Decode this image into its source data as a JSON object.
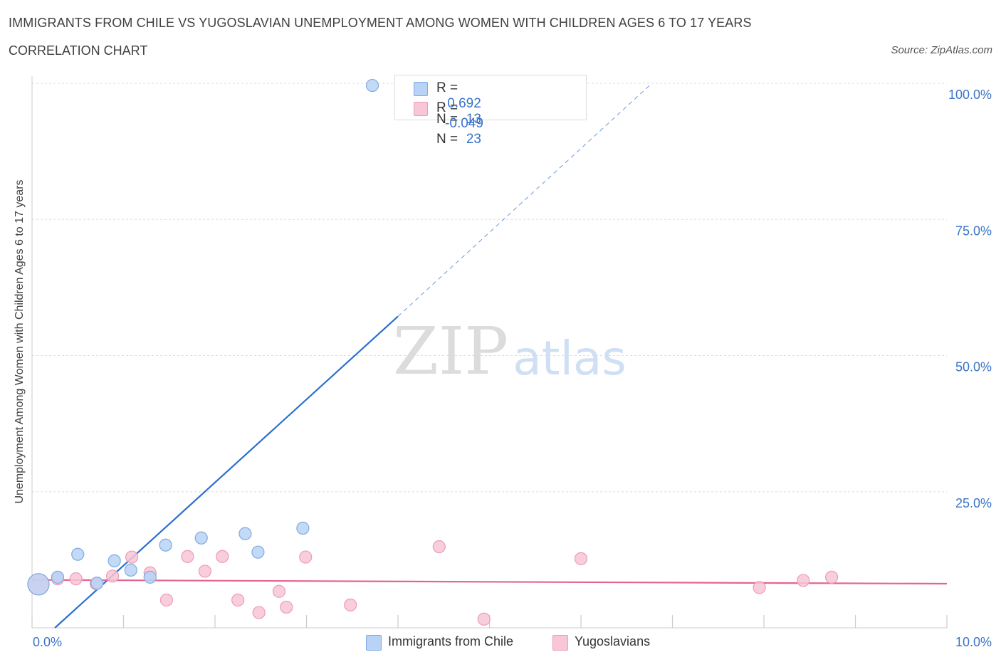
{
  "title": "IMMIGRANTS FROM CHILE VS YUGOSLAVIAN UNEMPLOYMENT AMONG WOMEN WITH CHILDREN AGES 6 TO 17 YEARS",
  "subtitle": "CORRELATION CHART",
  "source": "Source: ZipAtlas.com",
  "watermark": {
    "zip": "ZIP",
    "atlas": "atlas"
  },
  "legend": {
    "r_label": "R =",
    "n_label": "N =",
    "series": [
      {
        "r": "0.692",
        "n": "13"
      },
      {
        "r": "-0.049",
        "n": "23"
      }
    ]
  },
  "colors": {
    "chile_fill": "#b8d3f5",
    "chile_stroke": "#7eaae3",
    "chile_line": "#2a6fcf",
    "yugo_fill": "#f8c6d6",
    "yugo_stroke": "#ee9bb7",
    "yugo_line": "#e36592",
    "axis_text": "#3a74c6",
    "grid": "#dddddd"
  },
  "chart_data": {
    "type": "scatter",
    "title": "IMMIGRANTS FROM CHILE VS YUGOSLAVIAN UNEMPLOYMENT AMONG WOMEN WITH CHILDREN AGES 6 TO 17 YEARS",
    "xlabel": "",
    "ylabel": "Unemployment Among Women with Children Ages 6 to 17 years",
    "xlim": [
      0,
      10
    ],
    "ylim": [
      0,
      100
    ],
    "x_tick_labels": [
      "0.0%",
      "10.0%"
    ],
    "y_ticks": [
      25,
      50,
      75,
      100
    ],
    "y_tick_labels": [
      "25.0%",
      "50.0%",
      "75.0%",
      "100.0%"
    ],
    "legend_position": "bottom",
    "series": [
      {
        "name": "Immigrants from Chile",
        "points": [
          {
            "x": 0.07,
            "y": 8.0,
            "big": true
          },
          {
            "x": 0.28,
            "y": 9.3
          },
          {
            "x": 0.5,
            "y": 13.5
          },
          {
            "x": 0.71,
            "y": 8.2
          },
          {
            "x": 0.9,
            "y": 12.3
          },
          {
            "x": 1.08,
            "y": 10.6
          },
          {
            "x": 1.29,
            "y": 9.3
          },
          {
            "x": 1.46,
            "y": 15.2
          },
          {
            "x": 1.85,
            "y": 16.5
          },
          {
            "x": 2.33,
            "y": 17.3
          },
          {
            "x": 2.47,
            "y": 13.9
          },
          {
            "x": 2.96,
            "y": 18.3
          },
          {
            "x": 3.72,
            "y": 99.6
          }
        ],
        "trend": {
          "x_start": 0.25,
          "y_start": 0.0,
          "x_solid_end": 4.0,
          "y_solid_end": 57.2,
          "x_dash_end": 6.75,
          "y_dash_end": 99.6
        }
      },
      {
        "name": "Yugoslavians",
        "points": [
          {
            "x": 0.07,
            "y": 8.0,
            "big": true
          },
          {
            "x": 0.28,
            "y": 9.0
          },
          {
            "x": 0.48,
            "y": 9.0
          },
          {
            "x": 0.7,
            "y": 8.1
          },
          {
            "x": 0.88,
            "y": 9.5
          },
          {
            "x": 1.09,
            "y": 13.0
          },
          {
            "x": 1.29,
            "y": 10.1
          },
          {
            "x": 1.47,
            "y": 5.1
          },
          {
            "x": 1.7,
            "y": 13.1
          },
          {
            "x": 1.89,
            "y": 10.4
          },
          {
            "x": 2.08,
            "y": 13.1
          },
          {
            "x": 2.25,
            "y": 5.1
          },
          {
            "x": 2.48,
            "y": 2.8
          },
          {
            "x": 2.7,
            "y": 6.7
          },
          {
            "x": 2.78,
            "y": 3.8
          },
          {
            "x": 2.99,
            "y": 13.0
          },
          {
            "x": 3.48,
            "y": 4.2
          },
          {
            "x": 4.45,
            "y": 14.9
          },
          {
            "x": 4.94,
            "y": 1.6
          },
          {
            "x": 6.0,
            "y": 12.7
          },
          {
            "x": 7.95,
            "y": 7.4
          },
          {
            "x": 8.43,
            "y": 8.7
          },
          {
            "x": 8.74,
            "y": 9.3
          }
        ],
        "trend": {
          "x_start": 0.0,
          "y_start": 8.8,
          "x_end": 10.0,
          "y_end": 8.1
        }
      }
    ]
  }
}
